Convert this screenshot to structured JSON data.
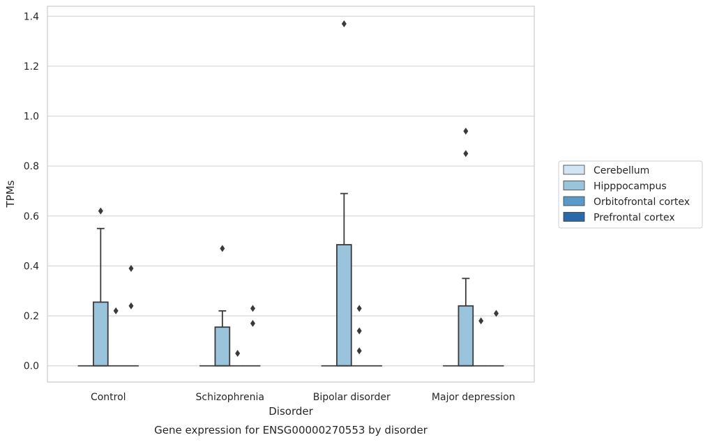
{
  "chart_data": {
    "type": "box",
    "title": "",
    "caption": "Gene expression for ENSG00000270553 by disorder",
    "xlabel": "Disorder",
    "ylabel": "TPMs",
    "ylim": [
      -0.065,
      1.44
    ],
    "yticks": [
      0.0,
      0.2,
      0.4,
      0.6,
      0.8,
      1.0,
      1.2,
      1.4
    ],
    "ytick_labels": [
      "0.0",
      "0.2",
      "0.4",
      "0.6",
      "0.8",
      "1.0",
      "1.2",
      "1.4"
    ],
    "grid": "horizontal",
    "legend_position": "right",
    "categories": [
      "Control",
      "Schizophrenia",
      "Bipolar disorder",
      "Major depression"
    ],
    "series": [
      {
        "name": "Cerebellum",
        "color": "#d3e4f3",
        "boxes": [
          {
            "min": 0,
            "q1": 0,
            "median": 0,
            "q3": 0,
            "max": 0,
            "outliers": []
          },
          {
            "min": 0,
            "q1": 0,
            "median": 0,
            "q3": 0,
            "max": 0,
            "outliers": []
          },
          {
            "min": 0,
            "q1": 0,
            "median": 0,
            "q3": 0,
            "max": 0,
            "outliers": []
          },
          {
            "min": 0,
            "q1": 0,
            "median": 0,
            "q3": 0,
            "max": 0,
            "outliers": []
          }
        ]
      },
      {
        "name": "Hipppocampus",
        "color": "#9ac3dc",
        "boxes": [
          {
            "min": 0,
            "q1": 0,
            "median": 0,
            "q3": 0.255,
            "max": 0.55,
            "outliers": [
              0.62
            ]
          },
          {
            "min": 0,
            "q1": 0,
            "median": 0,
            "q3": 0.155,
            "max": 0.22,
            "outliers": [
              0.47
            ]
          },
          {
            "min": 0,
            "q1": 0,
            "median": 0,
            "q3": 0.485,
            "max": 0.69,
            "outliers": [
              1.37
            ]
          },
          {
            "min": 0,
            "q1": 0,
            "median": 0,
            "q3": 0.24,
            "max": 0.35,
            "outliers": [
              0.94,
              0.85
            ]
          }
        ]
      },
      {
        "name": "Orbitofrontal cortex",
        "color": "#5b9ac8",
        "boxes": [
          {
            "min": 0,
            "q1": 0,
            "median": 0,
            "q3": 0,
            "max": 0,
            "outliers": [
              0.22
            ]
          },
          {
            "min": 0,
            "q1": 0,
            "median": 0,
            "q3": 0,
            "max": 0,
            "outliers": [
              0.05
            ]
          },
          {
            "min": 0,
            "q1": 0,
            "median": 0,
            "q3": 0,
            "max": 0,
            "outliers": [
              0.23,
              0.14,
              0.06
            ]
          },
          {
            "min": 0,
            "q1": 0,
            "median": 0,
            "q3": 0,
            "max": 0,
            "outliers": [
              0.18
            ]
          }
        ]
      },
      {
        "name": "Prefrontal cortex",
        "color": "#2a6aab",
        "boxes": [
          {
            "min": 0,
            "q1": 0,
            "median": 0,
            "q3": 0,
            "max": 0,
            "outliers": [
              0.39,
              0.24
            ]
          },
          {
            "min": 0,
            "q1": 0,
            "median": 0,
            "q3": 0,
            "max": 0,
            "outliers": [
              0.23,
              0.17
            ]
          },
          {
            "min": 0,
            "q1": 0,
            "median": 0,
            "q3": 0,
            "max": 0,
            "outliers": []
          },
          {
            "min": 0,
            "q1": 0,
            "median": 0,
            "q3": 0,
            "max": 0,
            "outliers": [
              0.21
            ]
          }
        ]
      }
    ],
    "outlier_marker": "diamond",
    "line_color": "#3a3a3a"
  }
}
